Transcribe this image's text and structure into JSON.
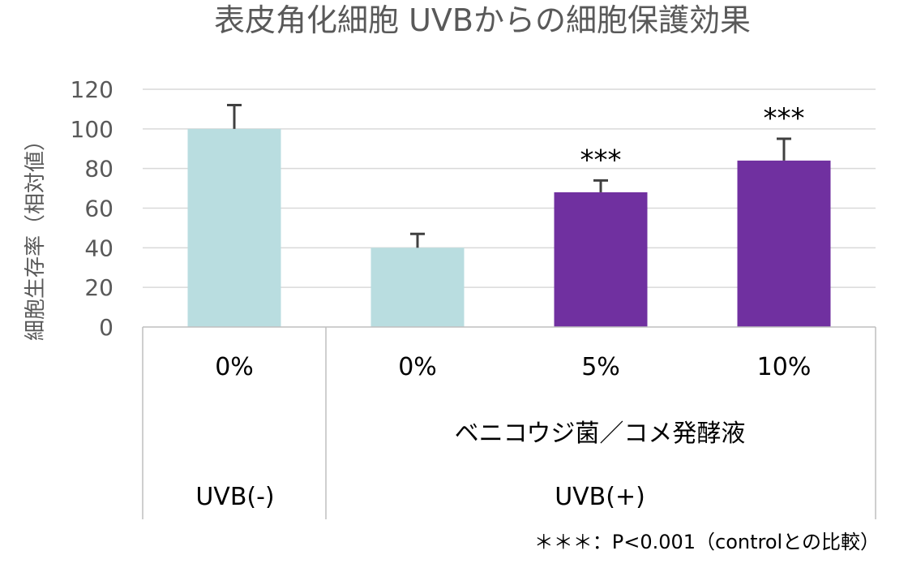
{
  "chart_data": {
    "type": "bar",
    "title": "表皮角化細胞 UVBからの細胞保護効果",
    "ylabel": "細胞生存率（相対値）",
    "ylim": [
      0,
      120
    ],
    "yticks": [
      0,
      20,
      40,
      60,
      80,
      100,
      120
    ],
    "grid": true,
    "categories": [
      "0%",
      "0%",
      "5%",
      "10%"
    ],
    "values": [
      100,
      40,
      68,
      84
    ],
    "errors": [
      12,
      7,
      6,
      11
    ],
    "bar_colors": [
      "#b9dde0",
      "#b9dde0",
      "#7030a0",
      "#7030a0"
    ],
    "significance": [
      "",
      "",
      "***",
      "***"
    ],
    "group_labels": {
      "treatment": "ベニコウジ菌／コメ発酵液",
      "uvb_minus": "UVB(-)",
      "uvb_plus": "UVB(+)"
    },
    "footnote": "＊＊＊：P<0.001（controlとの比較）"
  }
}
